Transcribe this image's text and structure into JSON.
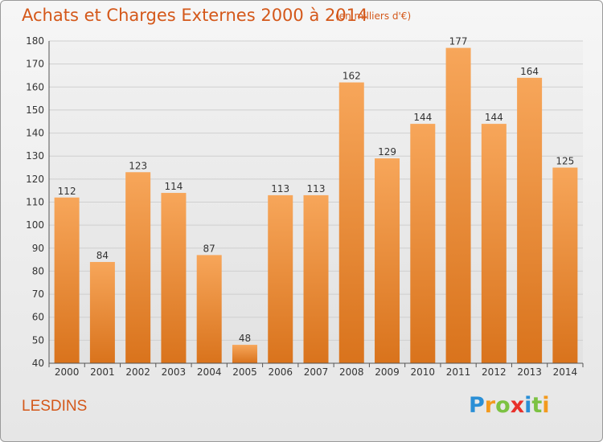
{
  "header": {
    "title": "Achats et Charges Externes 2000 à 2014",
    "subtitle": "(en milliers d'€)"
  },
  "place_name": "LESDINS",
  "logo": {
    "text": "Proxiti",
    "letters": [
      {
        "ch": "P",
        "color": "#2a8fd6"
      },
      {
        "ch": "r",
        "color": "#f39a1e"
      },
      {
        "ch": "o",
        "color": "#7cc242"
      },
      {
        "ch": "x",
        "color": "#e8302a"
      },
      {
        "ch": "i",
        "color": "#2a8fd6"
      },
      {
        "ch": "t",
        "color": "#7cc242"
      },
      {
        "ch": "i",
        "color": "#f39a1e"
      }
    ]
  },
  "colors": {
    "bar_top": "#f7a65a",
    "bar_bottom": "#d9731c",
    "title": "#d4581a",
    "grid": "#cfcfcf"
  },
  "chart_data": {
    "type": "bar",
    "categories": [
      "2000",
      "2001",
      "2002",
      "2003",
      "2004",
      "2005",
      "2006",
      "2007",
      "2008",
      "2009",
      "2010",
      "2011",
      "2012",
      "2013",
      "2014"
    ],
    "values": [
      112,
      84,
      123,
      114,
      87,
      48,
      113,
      113,
      162,
      129,
      144,
      177,
      144,
      164,
      125
    ],
    "ylim": [
      40,
      180
    ],
    "yticks": [
      40,
      50,
      60,
      70,
      80,
      90,
      100,
      110,
      120,
      130,
      140,
      150,
      160,
      170,
      180
    ],
    "grid": true,
    "data_labels": true
  }
}
